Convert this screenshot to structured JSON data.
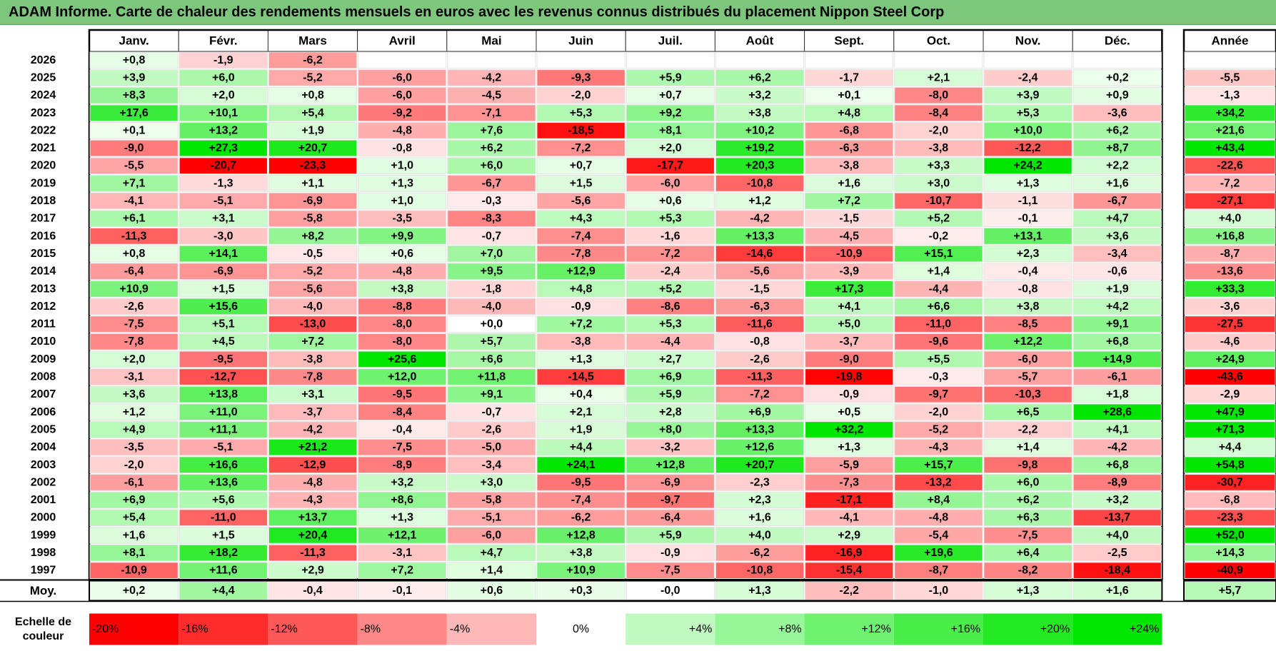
{
  "title": "ADAM Informe. Carte de chaleur des rendements mensuels en euros avec les revenus connus distribués du placement Nippon Steel Corp",
  "chart_data": {
    "type": "heatmap",
    "title": "ADAM Informe. Carte de chaleur des rendements mensuels en euros avec les revenus connus distribués du placement Nippon Steel Corp",
    "columns": [
      "Janv.",
      "Févr.",
      "Mars",
      "Avril",
      "Mai",
      "Juin",
      "Juil.",
      "Août",
      "Sept.",
      "Oct.",
      "Nov.",
      "Déc."
    ],
    "annual_label": "Année",
    "rows": [
      {
        "year": "2026",
        "months": [
          "+0,8",
          "-1,9",
          "-6,2",
          "",
          "",
          "",
          "",
          "",
          "",
          "",
          "",
          ""
        ],
        "annual": ""
      },
      {
        "year": "2025",
        "months": [
          "+3,9",
          "+6,0",
          "-5,2",
          "-6,0",
          "-4,2",
          "-9,3",
          "+5,9",
          "+6,2",
          "-1,7",
          "+2,1",
          "-2,4",
          "+0,2"
        ],
        "annual": "-5,5"
      },
      {
        "year": "2024",
        "months": [
          "+8,3",
          "+2,0",
          "+0,8",
          "-6,0",
          "-4,5",
          "-2,0",
          "+0,7",
          "+3,2",
          "+0,1",
          "-8,0",
          "+3,9",
          "+0,9"
        ],
        "annual": "-1,3"
      },
      {
        "year": "2023",
        "months": [
          "+17,6",
          "+10,1",
          "+5,4",
          "-9,2",
          "-7,1",
          "+5,3",
          "+9,2",
          "+3,8",
          "+4,8",
          "-8,4",
          "+5,3",
          "-3,6"
        ],
        "annual": "+34,2"
      },
      {
        "year": "2022",
        "months": [
          "+0,1",
          "+13,2",
          "+1,9",
          "-4,8",
          "+7,6",
          "-18,5",
          "+8,1",
          "+10,2",
          "-6,8",
          "-2,0",
          "+10,0",
          "+6,2"
        ],
        "annual": "+21,6"
      },
      {
        "year": "2021",
        "months": [
          "-9,0",
          "+27,3",
          "+20,7",
          "-0,8",
          "+6,2",
          "-7,2",
          "+2,0",
          "+19,2",
          "-6,3",
          "-3,8",
          "-12,2",
          "+8,7"
        ],
        "annual": "+43,4"
      },
      {
        "year": "2020",
        "months": [
          "-5,5",
          "-20,7",
          "-23,3",
          "+1,0",
          "+6,0",
          "+0,7",
          "-17,7",
          "+20,3",
          "-3,8",
          "+3,3",
          "+24,2",
          "+2,2"
        ],
        "annual": "-22,6"
      },
      {
        "year": "2019",
        "months": [
          "+7,1",
          "-1,3",
          "+1,1",
          "+1,3",
          "-6,7",
          "+1,5",
          "-6,0",
          "-10,8",
          "+1,6",
          "+3,0",
          "+1,3",
          "+1,6"
        ],
        "annual": "-7,2"
      },
      {
        "year": "2018",
        "months": [
          "-4,1",
          "-5,1",
          "-6,9",
          "+1,0",
          "-0,3",
          "-5,6",
          "+0,6",
          "+1,2",
          "+7,2",
          "-10,7",
          "-1,1",
          "-6,7"
        ],
        "annual": "-27,1"
      },
      {
        "year": "2017",
        "months": [
          "+6,1",
          "+3,1",
          "-5,8",
          "-3,5",
          "-8,3",
          "+4,3",
          "+5,3",
          "-4,2",
          "-1,5",
          "+5,2",
          "-0,1",
          "+4,7"
        ],
        "annual": "+4,0"
      },
      {
        "year": "2016",
        "months": [
          "-11,3",
          "-3,0",
          "+8,2",
          "+9,9",
          "-0,7",
          "-7,4",
          "-1,6",
          "+13,3",
          "-4,5",
          "-0,2",
          "+13,1",
          "+3,6"
        ],
        "annual": "+16,8"
      },
      {
        "year": "2015",
        "months": [
          "+0,8",
          "+14,1",
          "-0,5",
          "+0,6",
          "+7,0",
          "-7,8",
          "-7,2",
          "-14,6",
          "-10,9",
          "+15,1",
          "+2,3",
          "-3,4"
        ],
        "annual": "-8,7"
      },
      {
        "year": "2014",
        "months": [
          "-6,4",
          "-6,9",
          "-5,2",
          "-4,8",
          "+9,5",
          "+12,9",
          "-2,4",
          "-5,6",
          "-3,9",
          "+1,4",
          "-0,4",
          "-0,6"
        ],
        "annual": "-13,6"
      },
      {
        "year": "2013",
        "months": [
          "+10,9",
          "+1,5",
          "-5,6",
          "+3,8",
          "-1,8",
          "+4,8",
          "+5,2",
          "-1,5",
          "+17,3",
          "-4,4",
          "-0,8",
          "+1,9"
        ],
        "annual": "+33,3"
      },
      {
        "year": "2012",
        "months": [
          "-2,6",
          "+15,6",
          "-4,0",
          "-8,8",
          "-4,0",
          "-0,9",
          "-8,6",
          "-6,3",
          "+4,1",
          "+6,6",
          "+3,8",
          "+4,2"
        ],
        "annual": "-3,6"
      },
      {
        "year": "2011",
        "months": [
          "-7,5",
          "+5,1",
          "-13,0",
          "-8,0",
          "+0,0",
          "+7,2",
          "+5,3",
          "-11,6",
          "+5,0",
          "-11,0",
          "-8,5",
          "+9,1"
        ],
        "annual": "-27,5"
      },
      {
        "year": "2010",
        "months": [
          "-7,8",
          "+4,5",
          "+7,2",
          "-8,0",
          "+5,7",
          "-3,8",
          "-4,4",
          "-0,8",
          "-3,7",
          "-9,6",
          "+12,2",
          "+6,8"
        ],
        "annual": "-4,6"
      },
      {
        "year": "2009",
        "months": [
          "+2,0",
          "-9,5",
          "-3,8",
          "+25,6",
          "+6,6",
          "+1,3",
          "+2,7",
          "-2,6",
          "-9,0",
          "+5,5",
          "-6,0",
          "+14,9"
        ],
        "annual": "+24,9"
      },
      {
        "year": "2008",
        "months": [
          "-3,1",
          "-12,7",
          "-7,8",
          "+12,0",
          "+11,8",
          "-14,5",
          "+6,9",
          "-11,3",
          "-19,8",
          "-0,3",
          "-5,7",
          "-6,1"
        ],
        "annual": "-43,6"
      },
      {
        "year": "2007",
        "months": [
          "+3,6",
          "+13,8",
          "+3,1",
          "-9,5",
          "+9,1",
          "+0,4",
          "+5,9",
          "-7,2",
          "-0,9",
          "-9,7",
          "-10,3",
          "+1,8"
        ],
        "annual": "-2,9"
      },
      {
        "year": "2006",
        "months": [
          "+1,2",
          "+11,0",
          "-3,7",
          "-8,4",
          "-0,7",
          "+2,1",
          "+2,8",
          "+6,9",
          "+0,5",
          "-2,0",
          "+6,5",
          "+28,6"
        ],
        "annual": "+47,9"
      },
      {
        "year": "2005",
        "months": [
          "+4,9",
          "+11,1",
          "-4,2",
          "-0,4",
          "-2,6",
          "+1,9",
          "+8,0",
          "+13,3",
          "+32,2",
          "-5,2",
          "-2,2",
          "+4,1"
        ],
        "annual": "+71,3"
      },
      {
        "year": "2004",
        "months": [
          "-3,5",
          "-5,1",
          "+21,2",
          "-7,5",
          "-5,0",
          "+4,4",
          "-3,2",
          "+12,6",
          "+1,3",
          "-4,3",
          "+1,4",
          "-4,2"
        ],
        "annual": "+4,4"
      },
      {
        "year": "2003",
        "months": [
          "-2,0",
          "+16,6",
          "-12,9",
          "-8,9",
          "-3,4",
          "+24,1",
          "+12,8",
          "+20,7",
          "-5,9",
          "+15,7",
          "-9,8",
          "+6,8"
        ],
        "annual": "+54,8"
      },
      {
        "year": "2002",
        "months": [
          "-6,1",
          "+13,6",
          "-4,8",
          "+3,2",
          "+3,0",
          "-9,5",
          "-6,9",
          "-2,3",
          "-7,3",
          "-13,2",
          "+6,0",
          "-8,9"
        ],
        "annual": "-30,7"
      },
      {
        "year": "2001",
        "months": [
          "+6,9",
          "+5,6",
          "-4,3",
          "+8,6",
          "-5,8",
          "-7,4",
          "-9,7",
          "+2,3",
          "-17,1",
          "+8,4",
          "+6,2",
          "+3,2"
        ],
        "annual": "-6,8"
      },
      {
        "year": "2000",
        "months": [
          "+5,4",
          "-11,0",
          "+13,7",
          "+1,3",
          "-5,1",
          "-6,2",
          "-6,4",
          "+1,6",
          "-4,1",
          "-4,8",
          "+6,3",
          "-13,7"
        ],
        "annual": "-23,3"
      },
      {
        "year": "1999",
        "months": [
          "+1,6",
          "+1,5",
          "+20,4",
          "+12,1",
          "-6,0",
          "+12,8",
          "+5,9",
          "+4,0",
          "+2,9",
          "-5,4",
          "-7,5",
          "+4,0"
        ],
        "annual": "+52,0"
      },
      {
        "year": "1998",
        "months": [
          "+8,1",
          "+18,2",
          "-11,3",
          "-3,1",
          "+4,7",
          "+3,8",
          "-0,9",
          "-6,2",
          "-16,9",
          "+19,6",
          "+6,4",
          "-2,5"
        ],
        "annual": "+14,3"
      },
      {
        "year": "1997",
        "months": [
          "-10,9",
          "+11,6",
          "+2,9",
          "+7,2",
          "+1,4",
          "+10,9",
          "-7,5",
          "-10,8",
          "-15,4",
          "-8,7",
          "-8,2",
          "-18,4"
        ],
        "annual": "-40,9"
      }
    ],
    "average": {
      "label": "Moy.",
      "months": [
        "+0,2",
        "+4,4",
        "-0,4",
        "-0,1",
        "+0,6",
        "+0,3",
        "-0,0",
        "+1,3",
        "-2,2",
        "-1,0",
        "+1,3",
        "+1,6"
      ],
      "annual": "+5,7"
    },
    "scale": {
      "label_line1": "Echelle de",
      "label_line2": "couleur",
      "stops": [
        "-20%",
        "-16%",
        "-12%",
        "-8%",
        "-4%",
        "0%",
        "+4%",
        "+8%",
        "+12%",
        "+16%",
        "+20%",
        "+24%"
      ],
      "stop_values": [
        -20,
        -16,
        -12,
        -8,
        -4,
        0,
        4,
        8,
        12,
        16,
        20,
        24
      ]
    },
    "colors": {
      "title_bg": "#7dc77d",
      "neg_max": "#ff0000",
      "neutral": "#ffffff",
      "pos_max": "#00e000"
    }
  }
}
